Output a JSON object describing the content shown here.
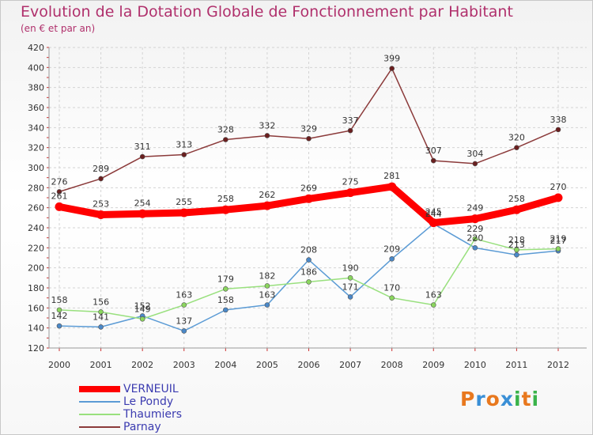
{
  "header": {
    "title": "Evolution de la Dotation Globale de Fonctionnement par Habitant",
    "subtitle": "(en € et par an)"
  },
  "logo": {
    "text": "Proxiti",
    "letter_colors": [
      "#e8781e",
      "#3a8fd6",
      "#e8781e",
      "#3a8fd6",
      "#3ab34a",
      "#e8781e",
      "#3ab34a"
    ]
  },
  "chart_data": {
    "type": "line",
    "title": "Evolution de la Dotation Globale de Fonctionnement par Habitant",
    "subtitle": "(en € et par an)",
    "x": [
      "2000",
      "2001",
      "2002",
      "2003",
      "2004",
      "2005",
      "2006",
      "2007",
      "2008",
      "2009",
      "2010",
      "2011",
      "2012"
    ],
    "ylim": [
      120,
      420
    ],
    "yticks": [
      120,
      140,
      160,
      180,
      200,
      220,
      240,
      260,
      280,
      300,
      320,
      340,
      360,
      380,
      400,
      420
    ],
    "grid": true,
    "legend_position": "bottom-left",
    "series": [
      {
        "name": "VERNEUIL",
        "color": "#ff0000",
        "emphasis": true,
        "values": [
          261,
          253,
          254,
          255,
          258,
          262,
          269,
          275,
          281,
          245,
          249,
          258,
          270
        ]
      },
      {
        "name": "Le Pondy",
        "color": "#5b9bd5",
        "emphasis": false,
        "values": [
          142,
          141,
          152,
          137,
          158,
          163,
          208,
          171,
          209,
          244,
          220,
          213,
          217
        ]
      },
      {
        "name": "Thaumiers",
        "color": "#99e07e",
        "emphasis": false,
        "values": [
          158,
          156,
          149,
          163,
          179,
          182,
          186,
          190,
          170,
          163,
          229,
          218,
          219
        ]
      },
      {
        "name": "Parnay",
        "color": "#8b3a3a",
        "emphasis": false,
        "values": [
          276,
          289,
          311,
          313,
          328,
          332,
          329,
          337,
          399,
          307,
          304,
          320,
          338
        ]
      }
    ]
  }
}
